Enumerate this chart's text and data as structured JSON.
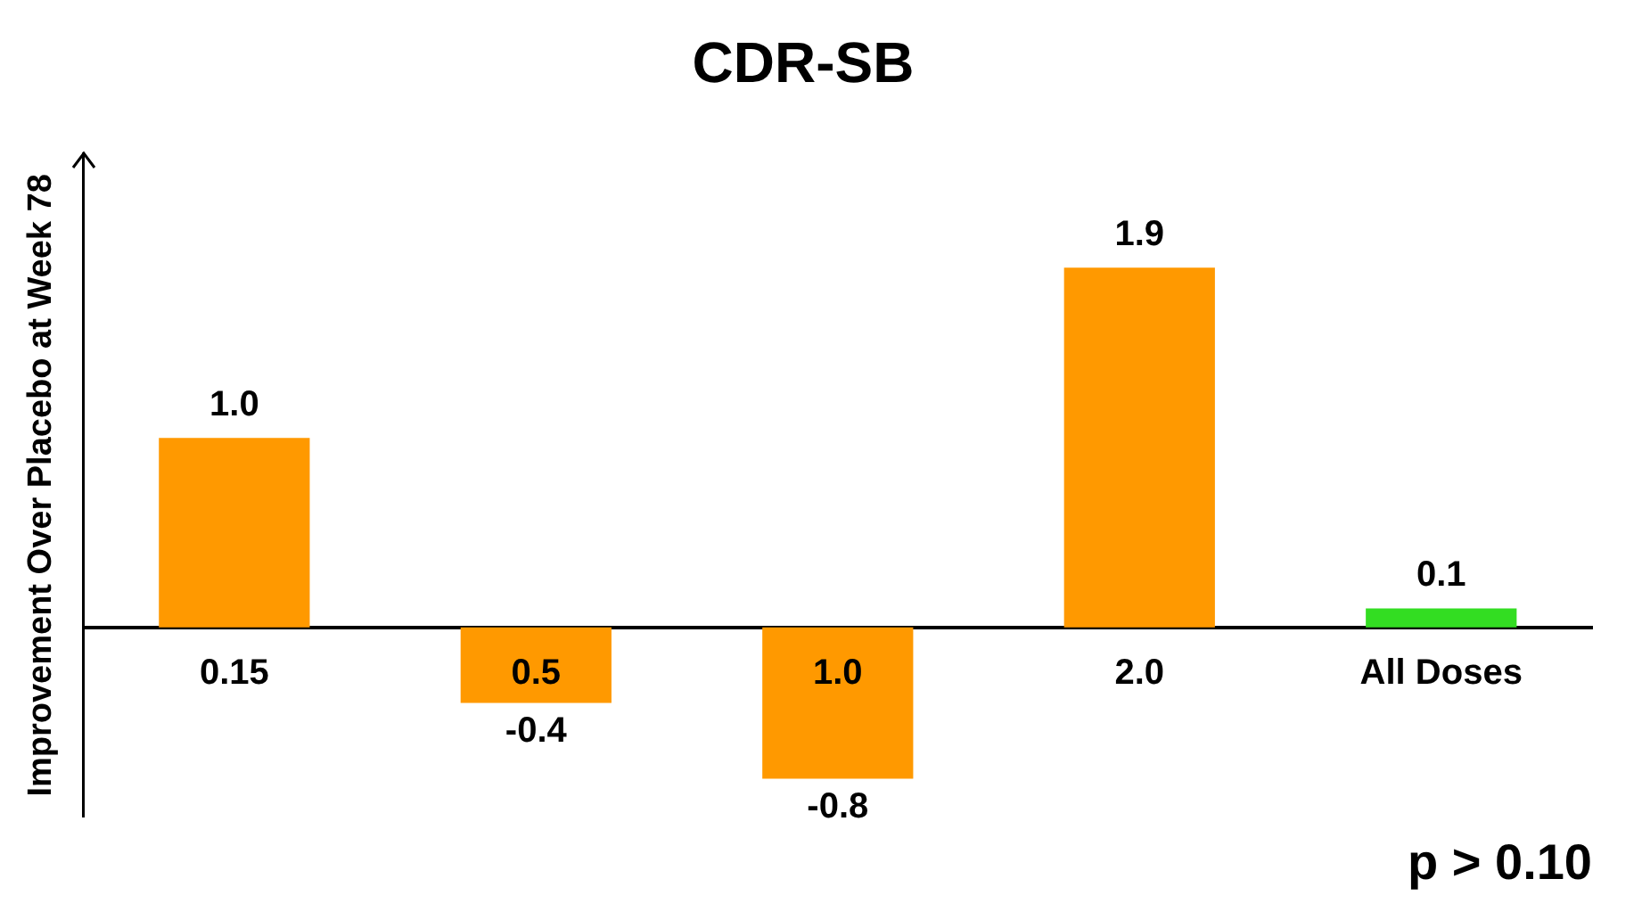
{
  "chart_data": {
    "type": "bar",
    "title": "CDR-SB",
    "ylabel": "Improvement Over Placebo at Week 78",
    "categories": [
      "0.15",
      "0.5",
      "1.0",
      "2.0",
      "All Doses"
    ],
    "values": [
      1.0,
      -0.4,
      -0.8,
      1.9,
      0.1
    ],
    "value_labels": [
      "1.0",
      "-0.4",
      "-0.8",
      "1.9",
      "0.1"
    ],
    "colors": [
      "#ff9900",
      "#ff9900",
      "#ff9900",
      "#ff9900",
      "#33dd22"
    ],
    "tick_labels": "x",
    "grid": false,
    "legend": false,
    "annotations": [
      "p > 0.10"
    ]
  }
}
